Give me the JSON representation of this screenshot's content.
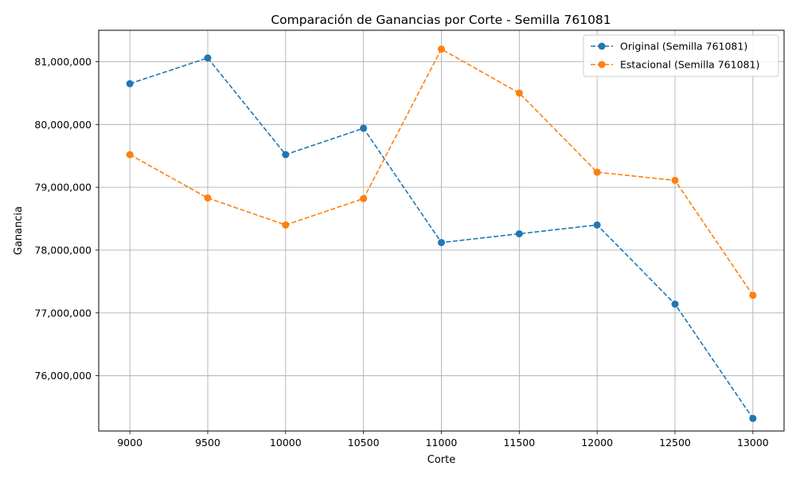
{
  "chart_data": {
    "type": "line",
    "title": "Comparación de Ganancias por Corte - Semilla 761081",
    "xlabel": "Corte",
    "ylabel": "Ganancia",
    "x": [
      9000,
      9500,
      10000,
      10500,
      11000,
      11500,
      12000,
      12500,
      13000
    ],
    "x_tick_labels": [
      "9000",
      "9500",
      "10000",
      "10500",
      "11000",
      "11500",
      "12000",
      "12500",
      "13000"
    ],
    "y_ticks": [
      76000000,
      77000000,
      78000000,
      79000000,
      80000000,
      81000000
    ],
    "y_tick_labels": [
      "76,000,000",
      "77,000,000",
      "78,000,000",
      "79,000,000",
      "80,000,000",
      "81,000,000"
    ],
    "xlim": [
      8800,
      13200
    ],
    "ylim": [
      75120000,
      81500000
    ],
    "grid": true,
    "legend_position": "top-right",
    "series": [
      {
        "name": "Original (Semilla 761081)",
        "color": "#1f77b4",
        "linestyle": "dashed",
        "marker": "circle",
        "values": [
          80650000,
          81060000,
          79520000,
          79940000,
          78120000,
          78260000,
          78400000,
          77140000,
          75320000
        ]
      },
      {
        "name": "Estacional (Semilla 761081)",
        "color": "#ff7f0e",
        "linestyle": "dashed",
        "marker": "circle",
        "values": [
          79520000,
          78830000,
          78400000,
          78820000,
          81200000,
          80500000,
          79240000,
          79110000,
          77280000
        ]
      }
    ]
  }
}
